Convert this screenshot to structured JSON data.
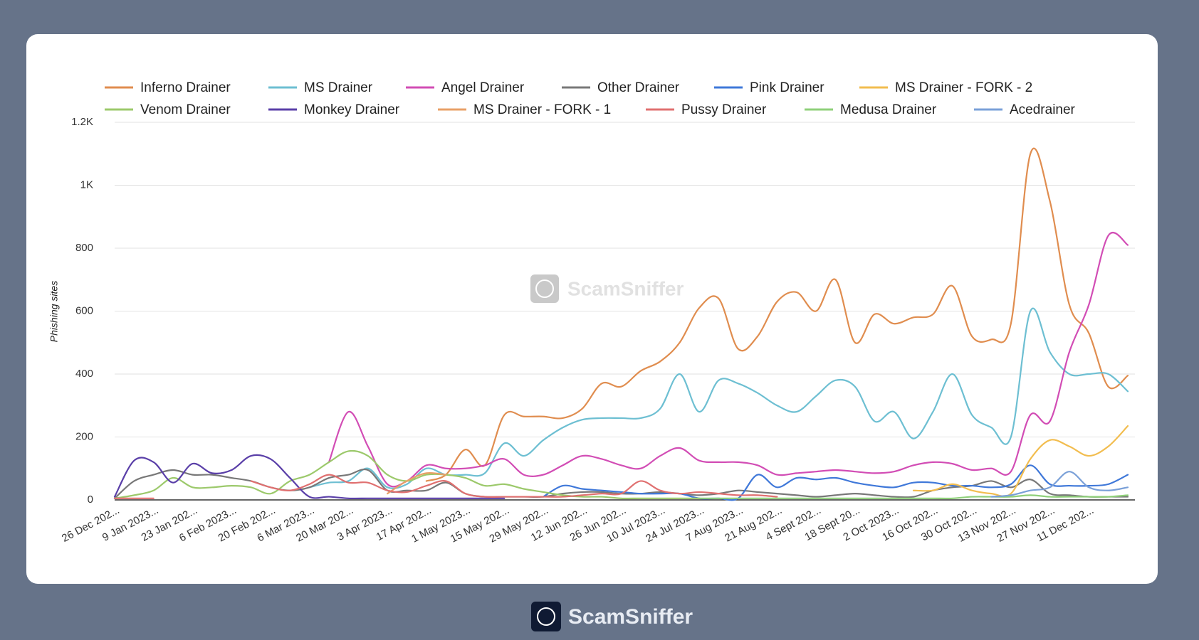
{
  "chart_data": {
    "type": "line",
    "y_axis_label": "Phishing sites",
    "watermark": "ScamSniffer",
    "categories": [
      "26 Dec 202...",
      null,
      "9 Jan 2023...",
      null,
      "23 Jan 202...",
      null,
      "6 Feb 2023...",
      null,
      "20 Feb 202...",
      null,
      "6 Mar 2023...",
      null,
      "20 Mar 202...",
      null,
      "3 Apr 2023...",
      null,
      "17 Apr 202...",
      null,
      "1 May 2023...",
      null,
      "15 May 202...",
      null,
      "29 May 202...",
      null,
      "12 Jun 202...",
      null,
      "26 Jun 202...",
      null,
      "10 Jul 2023...",
      null,
      "24 Jul 2023...",
      null,
      "7 Aug 2023...",
      null,
      "21 Aug 202...",
      null,
      "4 Sept 202...",
      null,
      "18 Sept 20...",
      null,
      "2 Oct 2023...",
      null,
      "16 Oct 202...",
      null,
      "30 Oct 202...",
      null,
      "13 Nov 202...",
      null,
      "27 Nov 202...",
      null,
      "11 Dec 202...",
      null,
      null
    ],
    "ylim": [
      0,
      1200
    ],
    "yticks": [
      0,
      200,
      400,
      600,
      800,
      {
        "value": 1000,
        "label": "1K"
      },
      {
        "value": 1200,
        "label": "1.2K"
      }
    ],
    "grid": true,
    "legend": "top",
    "series": [
      {
        "name": "Inferno Drainer",
        "color": "#e08d4f",
        "values": [
          null,
          null,
          null,
          null,
          null,
          null,
          null,
          null,
          null,
          null,
          null,
          null,
          null,
          null,
          null,
          null,
          60,
          80,
          160,
          110,
          270,
          265,
          265,
          260,
          290,
          370,
          360,
          410,
          440,
          500,
          610,
          640,
          480,
          520,
          630,
          660,
          600,
          700,
          500,
          590,
          560,
          580,
          590,
          680,
          520,
          510,
          560,
          1100,
          950,
          620,
          530,
          360,
          395
        ]
      },
      {
        "name": "MS Drainer",
        "color": "#6dbfd2",
        "values": [
          null,
          null,
          null,
          null,
          null,
          null,
          null,
          null,
          null,
          null,
          40,
          55,
          60,
          100,
          40,
          50,
          100,
          80,
          80,
          85,
          180,
          140,
          190,
          230,
          255,
          260,
          260,
          260,
          290,
          400,
          280,
          380,
          370,
          340,
          300,
          280,
          330,
          380,
          360,
          250,
          280,
          195,
          280,
          400,
          270,
          230,
          200,
          600,
          470,
          400,
          400,
          400,
          345
        ]
      },
      {
        "name": "Angel Drainer",
        "color": "#d24db5",
        "values": [
          null,
          null,
          null,
          null,
          null,
          null,
          null,
          null,
          null,
          null,
          null,
          120,
          280,
          170,
          50,
          60,
          110,
          100,
          100,
          110,
          130,
          80,
          80,
          110,
          140,
          130,
          110,
          100,
          140,
          165,
          125,
          120,
          120,
          110,
          80,
          85,
          90,
          95,
          90,
          85,
          90,
          110,
          120,
          115,
          95,
          100,
          90,
          270,
          250,
          470,
          620,
          840,
          810
        ]
      },
      {
        "name": "Other Drainer",
        "color": "#787878",
        "values": [
          5,
          60,
          80,
          95,
          80,
          80,
          70,
          60,
          40,
          30,
          40,
          70,
          80,
          95,
          30,
          30,
          30,
          55,
          20,
          10,
          10,
          10,
          10,
          20,
          25,
          25,
          20,
          20,
          25,
          20,
          15,
          20,
          30,
          25,
          20,
          15,
          10,
          15,
          20,
          15,
          10,
          10,
          30,
          40,
          45,
          60,
          40,
          65,
          20,
          15,
          10,
          10,
          10
        ]
      },
      {
        "name": "Pink Drainer",
        "color": "#3f78d9",
        "values": [
          null,
          null,
          null,
          null,
          null,
          null,
          null,
          null,
          null,
          null,
          null,
          null,
          null,
          null,
          null,
          null,
          null,
          null,
          null,
          null,
          null,
          null,
          10,
          45,
          35,
          30,
          25,
          20,
          20,
          20,
          5,
          5,
          5,
          80,
          40,
          70,
          65,
          70,
          55,
          45,
          40,
          55,
          55,
          45,
          45,
          40,
          50,
          110,
          50,
          45,
          45,
          50,
          80
        ]
      },
      {
        "name": "MS Drainer - FORK - 2",
        "color": "#f2bd4f",
        "values": [
          null,
          null,
          null,
          null,
          null,
          null,
          null,
          null,
          null,
          null,
          null,
          null,
          null,
          null,
          null,
          null,
          null,
          null,
          null,
          null,
          null,
          null,
          null,
          null,
          null,
          null,
          null,
          null,
          null,
          null,
          null,
          null,
          null,
          null,
          null,
          null,
          null,
          null,
          null,
          null,
          null,
          30,
          30,
          50,
          30,
          20,
          20,
          130,
          190,
          170,
          140,
          170,
          235
        ]
      },
      {
        "name": "Venom Drainer",
        "color": "#9cc96b",
        "values": [
          5,
          15,
          30,
          70,
          40,
          40,
          45,
          40,
          20,
          60,
          80,
          120,
          155,
          140,
          80,
          60,
          80,
          80,
          70,
          45,
          50,
          35,
          25,
          15,
          10,
          10,
          5,
          5,
          5,
          5,
          5,
          null,
          null,
          null,
          null,
          null,
          null,
          null,
          null,
          null,
          null,
          null,
          null,
          null,
          null,
          null,
          null,
          null,
          null,
          null,
          null,
          null,
          null
        ]
      },
      {
        "name": "Monkey Drainer",
        "color": "#5a3fa8",
        "values": [
          10,
          125,
          120,
          55,
          115,
          85,
          95,
          140,
          130,
          70,
          10,
          10,
          5,
          5,
          5,
          5,
          5,
          5,
          5,
          5,
          5,
          null,
          null,
          null,
          null,
          null,
          null,
          null,
          null,
          null,
          null,
          null,
          null,
          null,
          null,
          null,
          null,
          null,
          null,
          null,
          null,
          null,
          null,
          null,
          null,
          null,
          null,
          null,
          null,
          null,
          null,
          null,
          null
        ]
      },
      {
        "name": "MS Drainer - FORK - 1",
        "color": "#e8a067",
        "values": [
          null,
          null,
          null,
          null,
          null,
          null,
          null,
          null,
          null,
          null,
          null,
          null,
          null,
          null,
          20,
          60,
          85,
          80,
          null,
          null,
          null,
          null,
          null,
          null,
          null,
          null,
          null,
          null,
          null,
          null,
          null,
          null,
          null,
          null,
          null,
          null,
          null,
          null,
          null,
          null,
          null,
          null,
          null,
          null,
          null,
          null,
          null,
          null,
          null,
          null,
          null,
          null,
          null
        ]
      },
      {
        "name": "Pussy Drainer",
        "color": "#e07070",
        "values": [
          5,
          5,
          5,
          null,
          null,
          null,
          null,
          60,
          40,
          30,
          50,
          80,
          55,
          55,
          30,
          25,
          45,
          60,
          20,
          10,
          10,
          10,
          10,
          10,
          15,
          20,
          20,
          60,
          30,
          20,
          25,
          20,
          15,
          15,
          10,
          null,
          null,
          null,
          null,
          null,
          null,
          null,
          null,
          null,
          null,
          null,
          null,
          null,
          null,
          null,
          null,
          null,
          null
        ]
      },
      {
        "name": "Medusa Drainer",
        "color": "#8fd07a",
        "values": [
          null,
          null,
          null,
          null,
          null,
          null,
          null,
          null,
          null,
          null,
          null,
          null,
          null,
          null,
          null,
          null,
          null,
          null,
          null,
          null,
          null,
          null,
          null,
          null,
          null,
          null,
          null,
          null,
          null,
          null,
          5,
          5,
          5,
          5,
          5,
          5,
          5,
          5,
          5,
          5,
          5,
          5,
          5,
          5,
          10,
          10,
          10,
          15,
          10,
          10,
          10,
          10,
          15
        ]
      },
      {
        "name": "Acedrainer",
        "color": "#7aa0d8",
        "values": [
          null,
          null,
          null,
          null,
          null,
          null,
          null,
          null,
          null,
          null,
          null,
          null,
          null,
          null,
          null,
          null,
          null,
          null,
          null,
          null,
          null,
          null,
          null,
          null,
          null,
          null,
          null,
          null,
          null,
          null,
          null,
          null,
          null,
          null,
          null,
          null,
          null,
          null,
          null,
          null,
          null,
          null,
          null,
          null,
          null,
          10,
          15,
          30,
          40,
          90,
          40,
          30,
          40
        ]
      }
    ]
  },
  "footer": {
    "brand": "ScamSniffer"
  }
}
